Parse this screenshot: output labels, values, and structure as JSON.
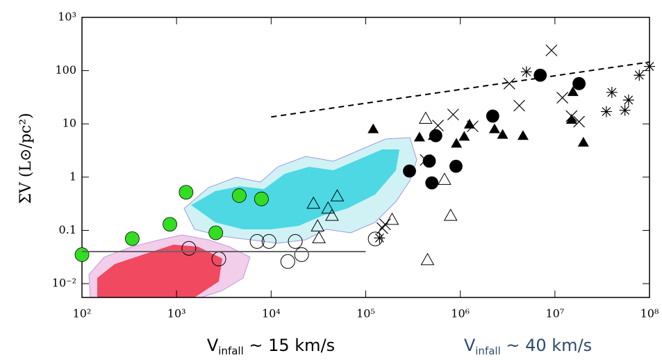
{
  "chart_data": {
    "type": "scatter",
    "y_label": "ΣV (L⊙/pc²)",
    "annotations": [
      {
        "main": "V",
        "sub": "infall",
        "rest": " ~ 15 km/s",
        "color": "#000000"
      },
      {
        "main": "V",
        "sub": "infall",
        "rest": " ~ 40 km/s",
        "color": "#2e4a6e"
      }
    ],
    "log_x": true,
    "log_y": true,
    "xlim": [
      100,
      100000000
    ],
    "ylim": [
      0.0055,
      1000
    ],
    "xticks": [
      {
        "value": 100,
        "label": "10²"
      },
      {
        "value": 1000,
        "label": "10³"
      },
      {
        "value": 10000,
        "label": "10⁴"
      },
      {
        "value": 100000,
        "label": "10⁵"
      },
      {
        "value": 1000000,
        "label": "10⁶"
      },
      {
        "value": 10000000,
        "label": "10⁷"
      },
      {
        "value": 100000000,
        "label": "10⁸"
      }
    ],
    "yticks": [
      {
        "value": 0.01,
        "label": "10⁻²"
      },
      0.1,
      1,
      10,
      100,
      {
        "value": 1000,
        "label": "10³"
      }
    ],
    "series": [
      {
        "marker": "circle-filled",
        "color": "#33dd22",
        "x": [
          100,
          340,
          850,
          1260,
          2600,
          4600,
          7900
        ],
        "values": [
          0.035,
          0.07,
          0.13,
          0.52,
          0.09,
          0.45,
          0.39
        ]
      },
      {
        "marker": "circle-open",
        "color": "#000000",
        "x": [
          1350,
          2800,
          7100,
          9500,
          15000,
          18000,
          21000,
          126000
        ],
        "values": [
          0.046,
          0.029,
          0.062,
          0.062,
          0.026,
          0.062,
          0.035,
          0.069
        ]
      },
      {
        "marker": "triangle-open",
        "color": "#000000",
        "x": [
          28000,
          40000,
          44000,
          50000,
          31000,
          32000,
          190000,
          430000,
          680000,
          790000,
          450000
        ],
        "values": [
          0.32,
          0.26,
          0.19,
          0.44,
          0.12,
          0.072,
          0.16,
          12.6,
          0.9,
          0.19,
          0.028
        ]
      },
      {
        "marker": "triangle-filled",
        "color": "#000000",
        "x": [
          120000,
          370000,
          520000,
          910000,
          1100000,
          1250000,
          2300000,
          2800000,
          4600000,
          15000000,
          15500000,
          20000000
        ],
        "values": [
          8,
          5.6,
          6,
          4.3,
          5.8,
          9.8,
          8,
          6.3,
          6,
          12,
          40,
          4.5
        ]
      },
      {
        "marker": "circle-filled",
        "color": "#000000",
        "x": [
          290000,
          470000,
          550000,
          500000,
          900000,
          2200000,
          7000000,
          18000000
        ],
        "values": [
          1.3,
          2,
          6,
          0.78,
          1.6,
          14,
          82,
          57
        ]
      },
      {
        "marker": "cross",
        "color": "#000000",
        "x": [
          430000,
          580000,
          840000,
          1350000,
          3300000,
          9200000,
          12000000,
          4200000,
          15000000,
          18000000,
          150000,
          160000
        ],
        "values": [
          2.1,
          9.3,
          15,
          9,
          57,
          240,
          31,
          22,
          14,
          11,
          0.11,
          0.13
        ]
      },
      {
        "marker": "asterisk",
        "color": "#000000",
        "x": [
          5000000,
          100000000,
          78000000,
          40000000,
          55000000,
          60000000,
          35000000,
          140000
        ],
        "values": [
          95,
          120,
          82,
          39,
          18,
          28,
          17,
          0.072
        ]
      },
      {
        "marker": "line-dashed",
        "color": "#000000",
        "x": [
          10000,
          100000000
        ],
        "values": [
          13.5,
          145
        ]
      },
      {
        "marker": "line-solid",
        "color": "#666666",
        "x": [
          100,
          100000
        ],
        "values": [
          0.04,
          0.04
        ]
      }
    ]
  }
}
